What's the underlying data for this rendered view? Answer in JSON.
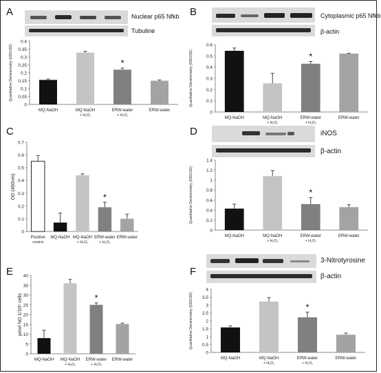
{
  "colors": {
    "bar_black": "#111111",
    "bar_light": "#c4c4c4",
    "bar_mid": "#808080",
    "bar_gray": "#a3a3a3",
    "bar_white": "#ffffff",
    "blot_bg": "#dadada",
    "blot_band": "#2a2a2a"
  },
  "chart_data": [
    {
      "panel": "A",
      "type": "bar",
      "blots": [
        "Nuclear p65 Nfkb",
        "Tubuline"
      ],
      "ylabel": "Quantitative Densitometry (IOD±SD)",
      "ylim": [
        0,
        0.4
      ],
      "yticks": [
        "0",
        "0.05",
        "0.1",
        "0.15",
        "0.2",
        "0.25",
        "0.3",
        "0.35",
        "0.4"
      ],
      "categories": [
        "MQ-NaOH",
        "MQ-NaOH\n+ H₂O₂",
        "ERW-water\n+ H₂O₂",
        "ERW-water"
      ],
      "values": [
        0.155,
        0.328,
        0.22,
        0.15
      ],
      "errors": [
        0.006,
        0.008,
        0.01,
        0.005
      ],
      "bar_colors": [
        "#111111",
        "#c4c4c4",
        "#808080",
        "#a3a3a3"
      ],
      "significance": [
        "",
        "",
        "*",
        ""
      ]
    },
    {
      "panel": "B",
      "type": "bar",
      "blots": [
        "Cytoplasmic p65 Nfkb",
        "β-actin"
      ],
      "ylabel": "Quantitative Densitometry (IOD±SD)",
      "ylim": [
        0,
        0.6
      ],
      "yticks": [
        "0",
        "0.1",
        "0.2",
        "0.3",
        "0.4",
        "0.5",
        "0.6"
      ],
      "categories": [
        "MQ-NaOH",
        "MQ-NaOH\n+ H₂O₂",
        "ERW-water\n+ H₂O₂",
        "ERW-water"
      ],
      "values": [
        0.545,
        0.255,
        0.43,
        0.52
      ],
      "errors": [
        0.025,
        0.09,
        0.02,
        0.004
      ],
      "bar_colors": [
        "#111111",
        "#c4c4c4",
        "#808080",
        "#a3a3a3"
      ],
      "significance": [
        "",
        "",
        "*",
        ""
      ]
    },
    {
      "panel": "C",
      "type": "bar",
      "blots": [],
      "ylabel": "OD (450nm)",
      "ylim": [
        0,
        0.7
      ],
      "yticks": [
        "0",
        "0.1",
        "0.2",
        "0.3",
        "0.4",
        "0.5",
        "0.6",
        "0.7"
      ],
      "categories": [
        "Positive\ncontrol",
        "MQ-NaOH",
        "MQ-NaOH\n+ H₂O₂",
        "ERW-water\n+ H₂O₂",
        "ERW-water"
      ],
      "values": [
        0.55,
        0.07,
        0.44,
        0.19,
        0.1
      ],
      "errors": [
        0.045,
        0.075,
        0.012,
        0.04,
        0.035
      ],
      "bar_colors": [
        "#ffffff",
        "#111111",
        "#c4c4c4",
        "#808080",
        "#a3a3a3"
      ],
      "significance": [
        "",
        "",
        "",
        "*",
        ""
      ]
    },
    {
      "panel": "D",
      "type": "bar",
      "blots": [
        "iNOS",
        "β-actin"
      ],
      "ylabel": "Quantitative Densitometry (IOD±SD)",
      "ylim": [
        0,
        1.4
      ],
      "yticks": [
        "0",
        "0.2",
        "0.4",
        "0.6",
        "0.8",
        "1",
        "1.2",
        "1.4"
      ],
      "categories": [
        "MQ-NaOH",
        "MQ-NaOH\n+ H₂O₂",
        "ERW-water\n+ H₂O₂",
        "ERW-water"
      ],
      "values": [
        0.43,
        1.08,
        0.52,
        0.46
      ],
      "errors": [
        0.09,
        0.11,
        0.13,
        0.05
      ],
      "bar_colors": [
        "#111111",
        "#c4c4c4",
        "#808080",
        "#a3a3a3"
      ],
      "significance": [
        "",
        "",
        "*",
        ""
      ]
    },
    {
      "panel": "E",
      "type": "bar",
      "blots": [],
      "ylabel": "pmol NO 1/10⁶ cells",
      "ylim": [
        0,
        40
      ],
      "yticks": [
        "0",
        "5",
        "10",
        "15",
        "20",
        "25",
        "30",
        "35",
        "40"
      ],
      "categories": [
        "MQ-NaOH",
        "MQ-NaOH\n+ H₂O₂",
        "ERW-water\n+ H₂O₂",
        "ERW-water"
      ],
      "values": [
        8,
        36,
        25,
        15.2
      ],
      "errors": [
        4,
        2,
        1,
        0.5
      ],
      "bar_colors": [
        "#111111",
        "#c4c4c4",
        "#808080",
        "#a3a3a3"
      ],
      "significance": [
        "",
        "",
        "*",
        ""
      ]
    },
    {
      "panel": "F",
      "type": "bar",
      "blots": [
        "3-Nitrotyrosine",
        "β-actin"
      ],
      "ylabel": "Quantitative Densitometry (IOD±SD)",
      "ylim": [
        0,
        4
      ],
      "yticks": [
        "0",
        "0.5",
        "1",
        "1.5",
        "2",
        "2.5",
        "3",
        "3.5",
        "4"
      ],
      "categories": [
        "MQ-NaOH",
        "MQ-NaOH\n+ H₂O₂",
        "ERW-water\n+ H₂O₂",
        "ERW-water"
      ],
      "values": [
        1.58,
        3.22,
        2.22,
        1.12
      ],
      "errors": [
        0.1,
        0.25,
        0.33,
        0.1
      ],
      "bar_colors": [
        "#111111",
        "#c4c4c4",
        "#808080",
        "#a3a3a3"
      ],
      "significance": [
        "",
        "",
        "*",
        ""
      ]
    }
  ]
}
